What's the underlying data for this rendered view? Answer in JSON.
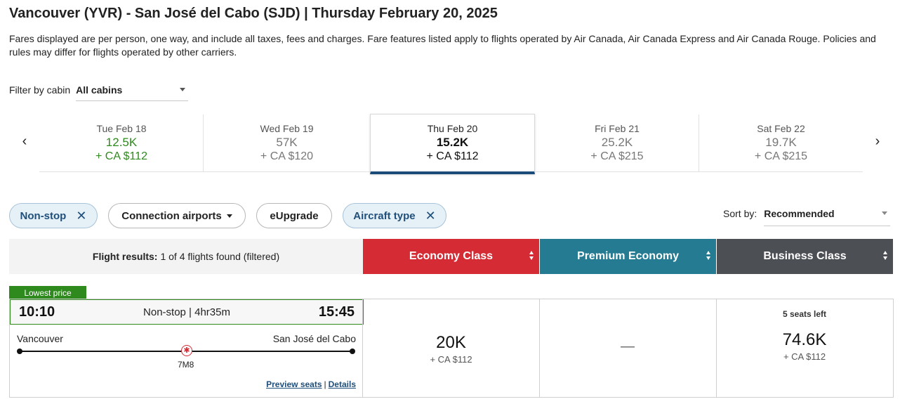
{
  "header": {
    "title": "Vancouver (YVR) - San José del Cabo (SJD)  |  Thursday February 20, 2025",
    "notice": "Fares displayed are per person, one way, and include all taxes, fees and charges. Fare features listed apply to flights operated by Air Canada, Air Canada Express and Air Canada Rouge. Policies and rules may differ for flights operated by other carriers."
  },
  "cabin_filter": {
    "label": "Filter by cabin",
    "value": "All cabins"
  },
  "date_carousel": {
    "prev_icon": "chevron-left-icon",
    "next_icon": "chevron-right-icon",
    "prev_glyph": "‹",
    "next_glyph": "›",
    "days": [
      {
        "date": "Tue Feb 18",
        "points": "12.5K",
        "taxes": "+ CA $112"
      },
      {
        "date": "Wed Feb 19",
        "points": "57K",
        "taxes": "+ CA $120"
      },
      {
        "date": "Thu Feb 20",
        "points": "15.2K",
        "taxes": "+ CA $112"
      },
      {
        "date": "Fri Feb 21",
        "points": "25.2K",
        "taxes": "+ CA $215"
      },
      {
        "date": "Sat Feb 22",
        "points": "19.7K",
        "taxes": "+ CA $215"
      }
    ]
  },
  "filters": {
    "chips": [
      {
        "label": "Non-stop",
        "selected": true,
        "close_glyph": "✕"
      },
      {
        "label": "Connection airports",
        "selected": false
      },
      {
        "label": "eUpgrade",
        "selected": false
      },
      {
        "label": "Aircraft type",
        "selected": true,
        "close_glyph": "✕"
      }
    ],
    "sort_label": "Sort by:",
    "sort_value": "Recommended"
  },
  "results": {
    "label": "Flight results:",
    "count_text": "1 of 4 flights found (filtered)"
  },
  "cabins": {
    "economy": {
      "label": "Economy Class",
      "color": "#d52b35"
    },
    "premium": {
      "label": "Premium Economy",
      "color": "#257b91"
    },
    "business": {
      "label": "Business Class",
      "color": "#4c4f54"
    }
  },
  "flight": {
    "badge": "Lowest price",
    "departure_time": "10:10",
    "summary": "Non-stop | 4hr35m",
    "arrival_time": "15:45",
    "origin_city": "Vancouver",
    "destination_city": "San José del Cabo",
    "airline_icon": "maple-leaf-icon",
    "airline_glyph": "✱",
    "aircraft": "7M8",
    "preview_seats_link": "Preview seats",
    "link_separator": "|",
    "details_link": "Details",
    "fares": {
      "economy": {
        "points": "20K",
        "taxes": "+ CA $112"
      },
      "premium": {
        "unavailable": "—"
      },
      "business": {
        "seats_left": "5 seats left",
        "points": "74.6K",
        "taxes": "+ CA $112"
      }
    }
  }
}
